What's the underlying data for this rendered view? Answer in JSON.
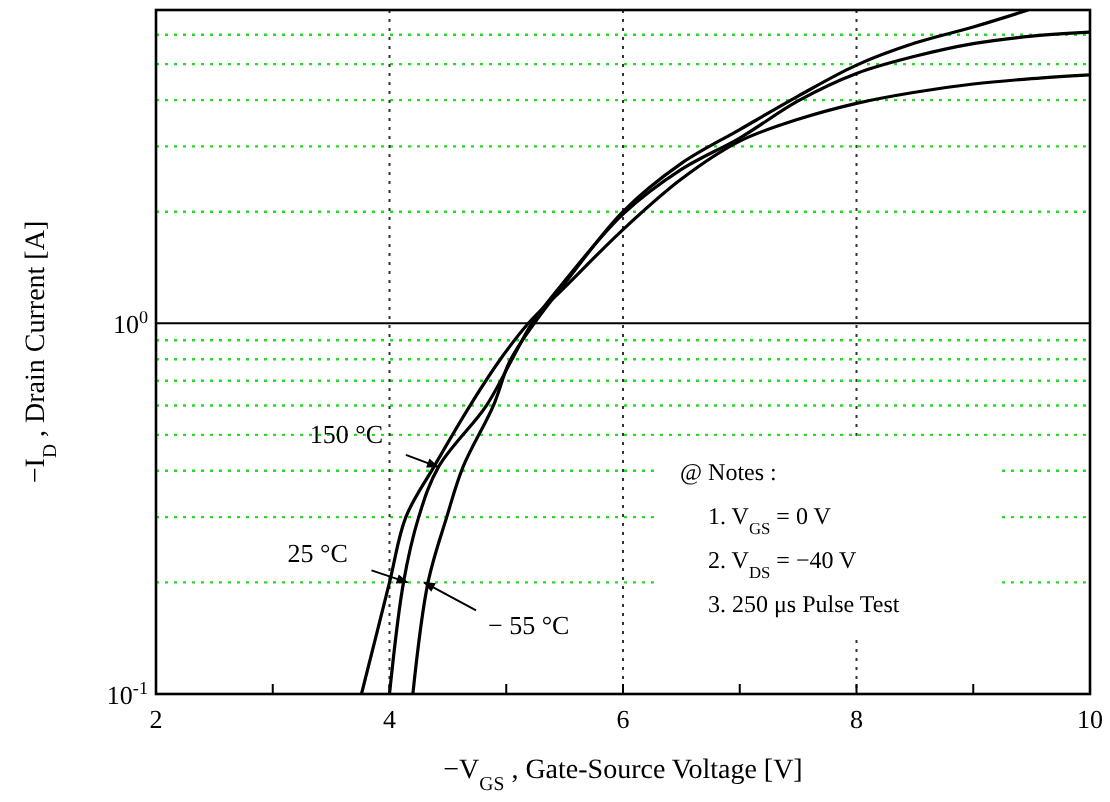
{
  "chart_data": {
    "type": "line",
    "xlabel": "−V$_{GS}$ , Gate-Source Voltage  [V]",
    "ylabel": "−I$_{D}$ , Drain Current  [A]",
    "log": "y",
    "ref_lines": [
      {
        "axis": "y",
        "value": 1,
        "color": "#000000"
      }
    ],
    "grid": true,
    "line_style": "solid",
    "marker": "none",
    "legend": "left",
    "xlim": [
      2,
      10
    ],
    "xticks": [
      2,
      {
        "value": 3,
        "label": null
      },
      4,
      {
        "value": 5,
        "label": null
      },
      6,
      {
        "value": 7,
        "label": null
      },
      8,
      {
        "value": 9,
        "label": null
      },
      10
    ],
    "ylim": [
      0.1,
      7
    ],
    "yticks": [
      {
        "value": 0.1,
        "label": "10$^{-1}$"
      },
      {
        "value": 0.2,
        "label": null
      },
      {
        "value": 0.3,
        "label": null
      },
      {
        "value": 0.4,
        "label": null
      },
      {
        "value": 0.5,
        "label": null
      },
      {
        "value": 0.6,
        "label": null
      },
      {
        "value": 0.7,
        "label": null
      },
      {
        "value": 0.8,
        "label": null
      },
      {
        "value": 0.9,
        "label": null
      },
      {
        "value": 1,
        "label": "10$^{0}$"
      },
      {
        "value": 2,
        "label": null
      },
      {
        "value": 3,
        "label": null
      },
      {
        "value": 4,
        "label": null
      },
      {
        "value": 5,
        "label": null
      },
      {
        "value": 6,
        "label": null
      }
    ],
    "series": [
      {
        "name": "150 °C",
        "color": "#000000",
        "x": [
          3.76,
          4.0,
          4.14,
          4.38,
          4.69,
          4.95,
          5.19,
          5.5,
          6,
          6.5,
          7,
          7.5,
          8,
          8.5,
          9,
          9.5,
          10
        ],
        "values": [
          0.1,
          0.2,
          0.3,
          0.41,
          0.6,
          0.8,
          1.0,
          1.25,
          1.79,
          2.45,
          3.1,
          3.55,
          3.92,
          4.2,
          4.42,
          4.57,
          4.68
        ]
      },
      {
        "name": "25 °C",
        "color": "#000000",
        "x": [
          4.0,
          4.12,
          4.25,
          4.42,
          4.83,
          5.05,
          5.22,
          5.5,
          6,
          6.5,
          7,
          7.5,
          8,
          8.5,
          9,
          9.5,
          10
        ],
        "values": [
          0.1,
          0.2,
          0.3,
          0.41,
          0.6,
          0.8,
          1.0,
          1.3,
          1.97,
          2.6,
          3.16,
          3.98,
          4.72,
          5.25,
          5.68,
          5.95,
          6.1
        ]
      },
      {
        "name": "− 55 °C",
        "color": "#000000",
        "x": [
          4.2,
          4.33,
          4.49,
          4.63,
          4.89,
          5.03,
          5.24,
          5.5,
          6,
          6.5,
          7,
          7.5,
          8,
          8.5,
          9,
          9.47
        ],
        "values": [
          0.1,
          0.2,
          0.3,
          0.41,
          0.6,
          0.79,
          1.0,
          1.28,
          2.0,
          2.7,
          3.33,
          4.1,
          4.97,
          5.7,
          6.3,
          7.0
        ]
      }
    ],
    "annotations": [
      "@ Notes :",
      "1. V$_{GS}$ = 0 V",
      "2. V$_{DS}$ = −40 V",
      "3. 250 μs Pulse Test"
    ]
  }
}
